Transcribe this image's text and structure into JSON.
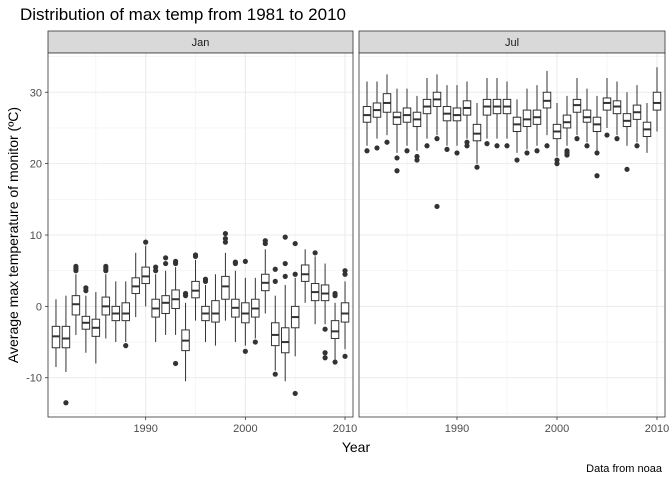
{
  "chart_data": {
    "type": "boxplot",
    "title": "Distribution of max temp from 1981 to 2010",
    "xlabel": "Year",
    "ylabel": "Average max temperature of monitor (ºC)",
    "caption": "Data from noaa",
    "ylim": [
      -15.5,
      35.5
    ],
    "xlim": [
      1980.2,
      2010.8
    ],
    "x_ticks": [
      1990,
      2000,
      2010
    ],
    "y_ticks": [
      -10,
      0,
      10,
      20,
      30
    ],
    "grid": true,
    "facets": [
      {
        "label": "Jan",
        "boxes": [
          {
            "x": 1981,
            "q1": -5.8,
            "median": -4.2,
            "q3": -2.8,
            "lo": -8.5,
            "hi": 1.0,
            "outliers": []
          },
          {
            "x": 1982,
            "q1": -5.8,
            "median": -4.5,
            "q3": -2.8,
            "lo": -9.2,
            "hi": 1.5,
            "outliers": [
              -13.5
            ]
          },
          {
            "x": 1983,
            "q1": -1.2,
            "median": 0.3,
            "q3": 1.5,
            "lo": -4.0,
            "hi": 4.5,
            "outliers": [
              5.0,
              5.3,
              5.6
            ]
          },
          {
            "x": 1984,
            "q1": -3.2,
            "median": -2.3,
            "q3": -1.4,
            "lo": -6.5,
            "hi": 1.5,
            "outliers": [
              2.2,
              2.6
            ]
          },
          {
            "x": 1985,
            "q1": -4.2,
            "median": -3.0,
            "q3": -1.8,
            "lo": -8.0,
            "hi": 2.0,
            "outliers": []
          },
          {
            "x": 1986,
            "q1": -1.2,
            "median": 0.0,
            "q3": 1.3,
            "lo": -4.5,
            "hi": 4.5,
            "outliers": [
              5.0,
              5.3,
              5.6
            ]
          },
          {
            "x": 1987,
            "q1": -2.0,
            "median": -1.0,
            "q3": 0.0,
            "lo": -5.0,
            "hi": 3.5,
            "outliers": []
          },
          {
            "x": 1988,
            "q1": -2.0,
            "median": -1.0,
            "q3": 0.5,
            "lo": -5.0,
            "hi": 3.5,
            "outliers": [
              -5.5
            ]
          },
          {
            "x": 1989,
            "q1": 1.8,
            "median": 2.8,
            "q3": 4.0,
            "lo": -1.5,
            "hi": 7.5,
            "outliers": []
          },
          {
            "x": 1990,
            "q1": 3.2,
            "median": 4.2,
            "q3": 5.5,
            "lo": 0.0,
            "hi": 8.5,
            "outliers": [
              9.0
            ]
          },
          {
            "x": 1991,
            "q1": -1.5,
            "median": -0.3,
            "q3": 1.0,
            "lo": -5.0,
            "hi": 4.5,
            "outliers": [
              5.0,
              5.5
            ]
          },
          {
            "x": 1992,
            "q1": -1.0,
            "median": 0.5,
            "q3": 1.5,
            "lo": -4.0,
            "hi": 5.0,
            "outliers": [
              6.0,
              6.8
            ]
          },
          {
            "x": 1993,
            "q1": -0.3,
            "median": 1.0,
            "q3": 2.3,
            "lo": -4.0,
            "hi": 5.5,
            "outliers": [
              6.0,
              6.3,
              -8.0
            ]
          },
          {
            "x": 1994,
            "q1": -6.2,
            "median": -4.8,
            "q3": -3.3,
            "lo": -10.5,
            "hi": 0.5,
            "outliers": [
              1.5,
              1.8
            ]
          },
          {
            "x": 1995,
            "q1": 1.2,
            "median": 2.2,
            "q3": 3.5,
            "lo": -2.0,
            "hi": 6.5,
            "outliers": [
              7.0,
              7.2
            ]
          },
          {
            "x": 1996,
            "q1": -2.0,
            "median": -1.0,
            "q3": 0.0,
            "lo": -5.0,
            "hi": 3.0,
            "outliers": [
              3.5,
              3.8
            ]
          },
          {
            "x": 1997,
            "q1": -2.2,
            "median": -1.0,
            "q3": 0.8,
            "lo": -5.5,
            "hi": 4.5,
            "outliers": []
          },
          {
            "x": 1998,
            "q1": 1.0,
            "median": 2.8,
            "q3": 4.2,
            "lo": -2.0,
            "hi": 7.5,
            "outliers": [
              9.0,
              9.5,
              10.2
            ]
          },
          {
            "x": 1999,
            "q1": -1.5,
            "median": -0.2,
            "q3": 1.0,
            "lo": -5.0,
            "hi": 5.0,
            "outliers": [
              6.0,
              6.2
            ]
          },
          {
            "x": 2000,
            "q1": -2.3,
            "median": -1.0,
            "q3": 0.5,
            "lo": -5.5,
            "hi": 4.0,
            "outliers": [
              6.3,
              -6.3
            ]
          },
          {
            "x": 2001,
            "q1": -1.5,
            "median": -0.3,
            "q3": 1.0,
            "lo": -4.5,
            "hi": 4.0,
            "outliers": [
              -5.0
            ]
          },
          {
            "x": 2002,
            "q1": 2.2,
            "median": 3.3,
            "q3": 4.5,
            "lo": -1.0,
            "hi": 8.0,
            "outliers": [
              8.8,
              9.2
            ]
          },
          {
            "x": 2003,
            "q1": -5.5,
            "median": -4.0,
            "q3": -2.3,
            "lo": -9.0,
            "hi": 1.5,
            "outliers": [
              3.5,
              5.2,
              -9.5
            ]
          },
          {
            "x": 2004,
            "q1": -6.5,
            "median": -5.0,
            "q3": -3.0,
            "lo": -10.5,
            "hi": 3.0,
            "outliers": [
              4.2,
              6.0,
              9.7
            ]
          },
          {
            "x": 2005,
            "q1": -3.0,
            "median": -1.5,
            "q3": 0.0,
            "lo": -7.0,
            "hi": 4.0,
            "outliers": [
              4.5,
              8.8,
              -12.2
            ]
          },
          {
            "x": 2006,
            "q1": 3.5,
            "median": 4.5,
            "q3": 5.8,
            "lo": 0.5,
            "hi": 8.0,
            "outliers": []
          },
          {
            "x": 2007,
            "q1": 0.8,
            "median": 2.0,
            "q3": 3.2,
            "lo": -2.5,
            "hi": 7.0,
            "outliers": [
              7.5
            ]
          },
          {
            "x": 2008,
            "q1": 0.8,
            "median": 1.8,
            "q3": 3.0,
            "lo": -2.5,
            "hi": 6.0,
            "outliers": [
              -3.2,
              -6.5,
              -7.2
            ]
          },
          {
            "x": 2009,
            "q1": -4.5,
            "median": -3.5,
            "q3": -2.0,
            "lo": -7.5,
            "hi": 0.5,
            "outliers": [
              1.5,
              1.8,
              -7.8
            ]
          },
          {
            "x": 2010,
            "q1": -2.2,
            "median": -1.0,
            "q3": 0.5,
            "lo": -6.0,
            "hi": 3.5,
            "outliers": [
              4.5,
              5.0,
              -7.0
            ]
          }
        ]
      },
      {
        "label": "Jul",
        "boxes": [
          {
            "x": 1981,
            "q1": 25.8,
            "median": 26.8,
            "q3": 28.0,
            "lo": 22.5,
            "hi": 31.5,
            "outliers": [
              21.8
            ]
          },
          {
            "x": 1982,
            "q1": 26.5,
            "median": 27.5,
            "q3": 28.5,
            "lo": 23.5,
            "hi": 31.5,
            "outliers": [
              22.2
            ]
          },
          {
            "x": 1983,
            "q1": 27.2,
            "median": 28.5,
            "q3": 29.8,
            "lo": 24.0,
            "hi": 32.5,
            "outliers": [
              23.0
            ]
          },
          {
            "x": 1984,
            "q1": 25.5,
            "median": 26.5,
            "q3": 27.2,
            "lo": 21.5,
            "hi": 30.5,
            "outliers": [
              20.8,
              19.0
            ]
          },
          {
            "x": 1985,
            "q1": 25.8,
            "median": 26.8,
            "q3": 27.8,
            "lo": 22.5,
            "hi": 30.5,
            "outliers": [
              21.8
            ]
          },
          {
            "x": 1986,
            "q1": 25.2,
            "median": 26.2,
            "q3": 27.2,
            "lo": 21.8,
            "hi": 29.5,
            "outliers": [
              21.0,
              20.5
            ]
          },
          {
            "x": 1987,
            "q1": 27.0,
            "median": 28.0,
            "q3": 29.0,
            "lo": 23.5,
            "hi": 32.0,
            "outliers": [
              22.5
            ]
          },
          {
            "x": 1988,
            "q1": 28.0,
            "median": 29.0,
            "q3": 30.0,
            "lo": 24.0,
            "hi": 32.5,
            "outliers": [
              23.5,
              14.0
            ]
          },
          {
            "x": 1989,
            "q1": 26.0,
            "median": 27.0,
            "q3": 28.0,
            "lo": 22.5,
            "hi": 31.0,
            "outliers": [
              22.0
            ]
          },
          {
            "x": 1990,
            "q1": 26.0,
            "median": 26.8,
            "q3": 27.8,
            "lo": 22.5,
            "hi": 31.0,
            "outliers": [
              21.5
            ]
          },
          {
            "x": 1991,
            "q1": 26.8,
            "median": 27.8,
            "q3": 28.8,
            "lo": 23.5,
            "hi": 31.5,
            "outliers": [
              23.0,
              22.5
            ]
          },
          {
            "x": 1992,
            "q1": 23.2,
            "median": 24.2,
            "q3": 25.5,
            "lo": 20.0,
            "hi": 28.5,
            "outliers": [
              19.5
            ]
          },
          {
            "x": 1993,
            "q1": 26.8,
            "median": 28.0,
            "q3": 29.0,
            "lo": 23.5,
            "hi": 32.0,
            "outliers": [
              22.8
            ]
          },
          {
            "x": 1994,
            "q1": 27.0,
            "median": 28.0,
            "q3": 29.0,
            "lo": 23.5,
            "hi": 32.0,
            "outliers": [
              22.5
            ]
          },
          {
            "x": 1995,
            "q1": 27.0,
            "median": 28.0,
            "q3": 29.0,
            "lo": 23.5,
            "hi": 31.5,
            "outliers": [
              22.5
            ]
          },
          {
            "x": 1996,
            "q1": 24.5,
            "median": 25.5,
            "q3": 26.5,
            "lo": 21.5,
            "hi": 29.0,
            "outliers": [
              20.5
            ]
          },
          {
            "x": 1997,
            "q1": 25.2,
            "median": 26.2,
            "q3": 27.5,
            "lo": 22.0,
            "hi": 30.5,
            "outliers": [
              21.5
            ]
          },
          {
            "x": 1998,
            "q1": 25.5,
            "median": 26.5,
            "q3": 27.5,
            "lo": 22.5,
            "hi": 31.0,
            "outliers": [
              21.8
            ]
          },
          {
            "x": 1999,
            "q1": 27.8,
            "median": 28.8,
            "q3": 30.0,
            "lo": 24.0,
            "hi": 33.0,
            "outliers": [
              22.5
            ]
          },
          {
            "x": 2000,
            "q1": 23.5,
            "median": 24.5,
            "q3": 25.5,
            "lo": 21.0,
            "hi": 28.5,
            "outliers": [
              20.5,
              20.0
            ]
          },
          {
            "x": 2001,
            "q1": 25.0,
            "median": 25.8,
            "q3": 26.8,
            "lo": 22.5,
            "hi": 29.5,
            "outliers": [
              21.8,
              21.5,
              21.2
            ]
          },
          {
            "x": 2002,
            "q1": 27.2,
            "median": 28.2,
            "q3": 29.0,
            "lo": 24.0,
            "hi": 32.0,
            "outliers": [
              23.5
            ]
          },
          {
            "x": 2003,
            "q1": 25.8,
            "median": 26.5,
            "q3": 27.5,
            "lo": 23.0,
            "hi": 30.5,
            "outliers": [
              22.5
            ]
          },
          {
            "x": 2004,
            "q1": 24.5,
            "median": 25.5,
            "q3": 26.5,
            "lo": 21.8,
            "hi": 29.5,
            "outliers": [
              21.5,
              18.3
            ]
          },
          {
            "x": 2005,
            "q1": 27.5,
            "median": 28.5,
            "q3": 29.2,
            "lo": 25.0,
            "hi": 32.0,
            "outliers": [
              24.0
            ]
          },
          {
            "x": 2006,
            "q1": 27.0,
            "median": 28.0,
            "q3": 28.8,
            "lo": 24.0,
            "hi": 31.5,
            "outliers": [
              23.5
            ]
          },
          {
            "x": 2007,
            "q1": 25.2,
            "median": 26.0,
            "q3": 27.0,
            "lo": 22.5,
            "hi": 30.0,
            "outliers": [
              19.2
            ]
          },
          {
            "x": 2008,
            "q1": 26.2,
            "median": 27.2,
            "q3": 28.2,
            "lo": 23.0,
            "hi": 31.0,
            "outliers": [
              22.5
            ]
          },
          {
            "x": 2009,
            "q1": 23.8,
            "median": 24.8,
            "q3": 25.8,
            "lo": 21.5,
            "hi": 28.5,
            "outliers": []
          },
          {
            "x": 2010,
            "q1": 27.5,
            "median": 28.5,
            "q3": 30.0,
            "lo": 24.5,
            "hi": 33.5,
            "outliers": []
          }
        ]
      }
    ]
  }
}
